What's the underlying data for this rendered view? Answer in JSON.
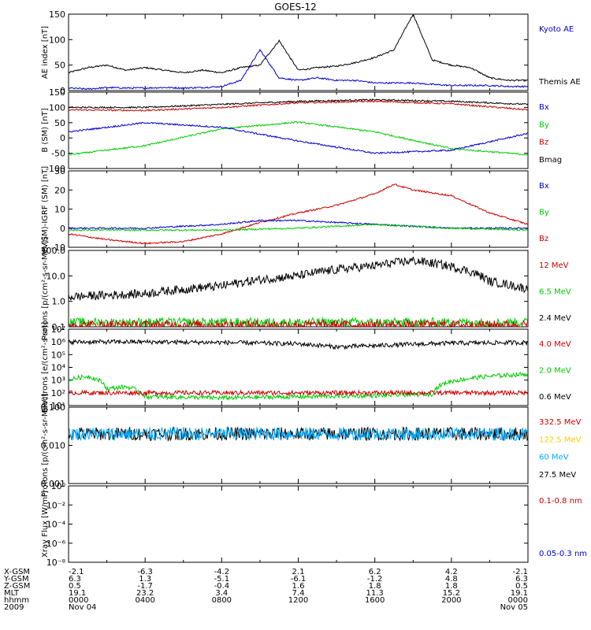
{
  "figure": {
    "title": "GOES-12"
  },
  "chart_data": [
    {
      "type": "line",
      "panel": "ae-index",
      "ylabel": "AE index [nT]",
      "ylim": [
        0,
        150
      ],
      "yticks": [
        "0",
        "50",
        "100",
        "150"
      ],
      "legend": [
        {
          "name": "Kyoto AE",
          "color": "#0000cc"
        },
        {
          "name": "Themis AE",
          "color": "#000000"
        }
      ],
      "series": [
        {
          "name": "Themis AE",
          "color": "#000000",
          "x": [
            0,
            1,
            2,
            3,
            4,
            5,
            6,
            7,
            8,
            9,
            10,
            11,
            12,
            13,
            14,
            15,
            16,
            17,
            18,
            19,
            20,
            21,
            22,
            23,
            24
          ],
          "values": [
            35,
            45,
            50,
            40,
            45,
            40,
            35,
            40,
            35,
            45,
            50,
            98,
            40,
            45,
            48,
            55,
            65,
            80,
            150,
            60,
            50,
            45,
            25,
            20,
            20
          ]
        },
        {
          "name": "Kyoto AE",
          "color": "#0000cc",
          "x": [
            0,
            1,
            2,
            3,
            4,
            5,
            6,
            7,
            8,
            9,
            10,
            11,
            12,
            13,
            14,
            15,
            16,
            17,
            18,
            19,
            20,
            21,
            22,
            23,
            24
          ],
          "values": [
            5,
            3,
            6,
            5,
            5,
            6,
            5,
            6,
            8,
            20,
            80,
            25,
            20,
            25,
            20,
            20,
            15,
            15,
            15,
            12,
            10,
            10,
            10,
            8,
            8
          ]
        }
      ]
    },
    {
      "type": "line",
      "panel": "b-sm",
      "ylabel": "B (SM) [nT]",
      "ylim": [
        -100,
        150
      ],
      "yticks": [
        "-100",
        "-50",
        "0",
        "50",
        "100",
        "150"
      ],
      "legend": [
        {
          "name": "Bx",
          "color": "#0000cc"
        },
        {
          "name": "By",
          "color": "#00cc00"
        },
        {
          "name": "Bz",
          "color": "#cc0000"
        },
        {
          "name": "Bmag",
          "color": "#000000"
        }
      ],
      "series": [
        {
          "name": "Bmag",
          "color": "#000000",
          "x": [
            0,
            4,
            8,
            12,
            16,
            20,
            24
          ],
          "values": [
            100,
            100,
            110,
            120,
            125,
            120,
            110
          ]
        },
        {
          "name": "Bz",
          "color": "#cc0000",
          "x": [
            0,
            4,
            8,
            12,
            16,
            20,
            24
          ],
          "values": [
            92,
            90,
            100,
            115,
            120,
            112,
            92
          ]
        },
        {
          "name": "By",
          "color": "#00cc00",
          "x": [
            0,
            4,
            8,
            12,
            16,
            20,
            24
          ],
          "values": [
            -55,
            -25,
            30,
            52,
            20,
            -35,
            -55
          ]
        },
        {
          "name": "Bx",
          "color": "#0000cc",
          "x": [
            0,
            4,
            8,
            12,
            16,
            20,
            24
          ],
          "values": [
            20,
            50,
            35,
            -10,
            -50,
            -40,
            15
          ]
        }
      ]
    },
    {
      "type": "line",
      "panel": "b-igrf",
      "ylabel": "B (SM)-IGRF (SM) [nT]",
      "ylim": [
        -10,
        30
      ],
      "yticks": [
        "-10",
        "0",
        "10",
        "20",
        "30"
      ],
      "legend": [
        {
          "name": "Bx",
          "color": "#0000cc"
        },
        {
          "name": "By",
          "color": "#00cc00"
        },
        {
          "name": "Bz",
          "color": "#cc0000"
        }
      ],
      "series": [
        {
          "name": "Bz",
          "color": "#cc0000",
          "x": [
            0,
            2,
            4,
            6,
            8,
            10,
            12,
            14,
            16,
            17,
            18,
            20,
            22,
            24
          ],
          "values": [
            -3,
            -6,
            -8,
            -7,
            -3,
            3,
            8,
            12,
            18,
            23,
            20,
            17,
            8,
            2
          ]
        },
        {
          "name": "Bx",
          "color": "#0000cc",
          "x": [
            0,
            4,
            8,
            10,
            12,
            16,
            20,
            24
          ],
          "values": [
            0,
            0,
            2,
            4,
            4,
            2,
            0,
            0
          ]
        },
        {
          "name": "By",
          "color": "#00cc00",
          "x": [
            0,
            4,
            8,
            12,
            16,
            20,
            24
          ],
          "values": [
            -1,
            -1,
            -1,
            0,
            2,
            0,
            -1
          ]
        }
      ]
    },
    {
      "type": "line",
      "panel": "protons-low",
      "ylabel": "Protons [p/(cm²-s-sr-MeV)]",
      "scale": "log",
      "ylim": [
        0.1,
        100
      ],
      "yticks": [
        "0.1",
        "1.0",
        "10.0",
        "100.0"
      ],
      "legend": [
        {
          "name": "12 MeV",
          "color": "#cc0000"
        },
        {
          "name": "6.5 MeV",
          "color": "#00cc00"
        },
        {
          "name": "2.4 MeV",
          "color": "#000000"
        }
      ],
      "series": [
        {
          "name": "2.4 MeV",
          "color": "#000000",
          "x": [
            0,
            4,
            8,
            12,
            16,
            18,
            22,
            24
          ],
          "values": [
            1.5,
            2,
            4,
            10,
            25,
            40,
            6,
            3
          ]
        },
        {
          "name": "6.5 MeV",
          "color": "#00cc00",
          "x": [
            0,
            24
          ],
          "values": [
            0.15,
            0.15
          ]
        },
        {
          "name": "12 MeV",
          "color": "#cc0000",
          "x": [
            0,
            24
          ],
          "values": [
            0.12,
            0.12
          ]
        }
      ]
    },
    {
      "type": "line",
      "panel": "electrons",
      "ylabel": "Electrons [e/(cm²-s-sr)]",
      "scale": "log",
      "ylim": [
        10,
        10000000
      ],
      "yticks": [
        "10¹",
        "10²",
        "10³",
        "10⁴",
        "10⁵",
        "10⁶",
        "10⁷"
      ],
      "legend": [
        {
          "name": "4.0 MeV",
          "color": "#cc0000"
        },
        {
          "name": "2.0 MeV",
          "color": "#00cc00"
        },
        {
          "name": "0.6 MeV",
          "color": "#000000"
        }
      ],
      "series": [
        {
          "name": "0.6 MeV",
          "color": "#000000",
          "x": [
            0,
            4,
            8,
            12,
            14,
            16,
            20,
            24
          ],
          "values": [
            1000000,
            1000000,
            900000,
            700000,
            400000,
            500000,
            800000,
            900000
          ]
        },
        {
          "name": "2.0 MeV",
          "color": "#00cc00",
          "x": [
            0,
            1,
            2,
            3,
            4,
            8,
            12,
            16,
            19,
            20,
            22,
            24
          ],
          "values": [
            1000,
            2000,
            200,
            300,
            50,
            40,
            50,
            60,
            80,
            800,
            2000,
            3000
          ]
        },
        {
          "name": "4.0 MeV",
          "color": "#cc0000",
          "x": [
            0,
            24
          ],
          "values": [
            100,
            100
          ]
        }
      ]
    },
    {
      "type": "line",
      "panel": "protons-high",
      "ylabel": "Protons [p/(cm²-s-sr-MeV)]",
      "scale": "log",
      "ylim": [
        0.001,
        0.1
      ],
      "yticks": [
        "0.001",
        "0.010",
        "0.100"
      ],
      "legend": [
        {
          "name": "332.5 MeV",
          "color": "#cc0000"
        },
        {
          "name": "122.5 MeV",
          "color": "#ffcc00"
        },
        {
          "name": "60 MeV",
          "color": "#00aaff"
        },
        {
          "name": "27.5 MeV",
          "color": "#000000"
        }
      ],
      "series": [
        {
          "name": "27.5 MeV",
          "color": "#000000",
          "x": [
            0,
            24
          ],
          "values": [
            0.02,
            0.02
          ]
        },
        {
          "name": "60 MeV",
          "color": "#00aaff",
          "x": [
            0,
            24
          ],
          "values": [
            0.02,
            0.02
          ]
        }
      ]
    },
    {
      "type": "line",
      "panel": "xray",
      "ylabel": "Xray Flux [W/m²]",
      "scale": "log",
      "ylim": [
        1e-08,
        1
      ],
      "yticks": [
        "10⁻⁸",
        "10⁻⁶",
        "10⁻⁴",
        "10⁻²",
        "10⁰"
      ],
      "legend": [
        {
          "name": "0.1-0.8 nm",
          "color": "#cc0000"
        },
        {
          "name": "0.05-0.3 nm",
          "color": "#0000cc"
        }
      ],
      "series": []
    }
  ],
  "axis_table": {
    "columns": [
      "0000",
      "0400",
      "0800",
      "1200",
      "1600",
      "2000",
      "0000"
    ],
    "rows": [
      {
        "label": "X-GSM",
        "values": [
          "-2.1",
          "-6.3",
          "-4.2",
          "2.1",
          "6.2",
          "4.2",
          "-2.1"
        ]
      },
      {
        "label": "Y-GSM",
        "values": [
          "6.3",
          "1.3",
          "-5.1",
          "-6.1",
          "-1.2",
          "4.8",
          "6.3"
        ]
      },
      {
        "label": "Z-GSM",
        "values": [
          "0.5",
          "-1.7",
          "-0.4",
          "1.6",
          "1.8",
          "1.8",
          "0.5"
        ]
      },
      {
        "label": "MLT",
        "values": [
          "19.1",
          "23.2",
          "3.4",
          "7.4",
          "11.3",
          "15.2",
          "19.1"
        ]
      },
      {
        "label": "hhmm",
        "values": [
          "0000",
          "0400",
          "0800",
          "1200",
          "1600",
          "2000",
          "0000"
        ]
      },
      {
        "label": "2009",
        "values": [
          "Nov 04",
          "",
          "",
          "",
          "",
          "",
          "Nov 05"
        ]
      }
    ]
  }
}
